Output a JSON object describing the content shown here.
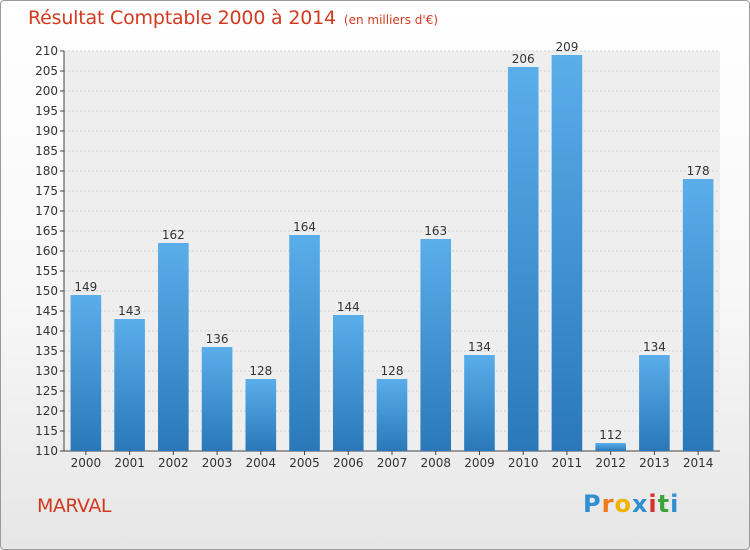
{
  "title": "Résultat Comptable 2000 à 2014",
  "subtitle": "(en milliers d'€)",
  "place_name": "MARVAL",
  "logo": {
    "letters": [
      "P",
      "r",
      "o",
      "x",
      "i",
      "t",
      "i"
    ],
    "colors": [
      "#2f8fd0",
      "#f07a1a",
      "#f0b400",
      "#2f8fd0",
      "#d8302a",
      "#3aa63a",
      "#2f8fd0"
    ]
  },
  "colors": {
    "bar_top": "#5aaeea",
    "bar_bottom": "#2a78b8",
    "title": "#d23a1f"
  },
  "chart_data": {
    "type": "bar",
    "categories": [
      "2000",
      "2001",
      "2002",
      "2003",
      "2004",
      "2005",
      "2006",
      "2007",
      "2008",
      "2009",
      "2010",
      "2011",
      "2012",
      "2013",
      "2014"
    ],
    "values": [
      149,
      143,
      162,
      136,
      128,
      164,
      144,
      128,
      163,
      134,
      206,
      209,
      112,
      134,
      178
    ],
    "title": "Résultat Comptable 2000 à 2014",
    "subtitle": "(en milliers d'€)",
    "ylim": [
      110,
      210
    ],
    "yticks": [
      110,
      115,
      120,
      125,
      130,
      135,
      140,
      145,
      150,
      155,
      160,
      165,
      170,
      175,
      180,
      185,
      190,
      195,
      200,
      205,
      210
    ],
    "grid": true,
    "data_labels": true
  }
}
